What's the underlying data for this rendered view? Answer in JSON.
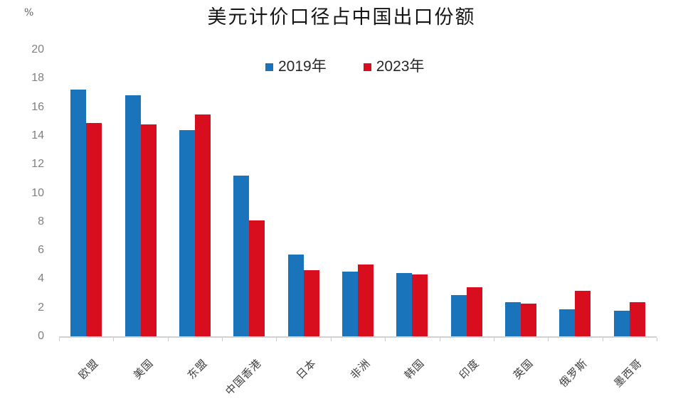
{
  "chart_data": {
    "type": "bar",
    "title": "美元计价口径占中国出口份额",
    "unit_label": "%",
    "categories": [
      "欧盟",
      "美国",
      "东盟",
      "中国香港",
      "日本",
      "非洲",
      "韩国",
      "印度",
      "英国",
      "俄罗斯",
      "墨西哥"
    ],
    "series": [
      {
        "name": "2019年",
        "color": "#1a74bc",
        "values": [
          17.2,
          16.8,
          14.4,
          11.2,
          5.7,
          4.5,
          4.4,
          2.9,
          2.4,
          1.9,
          1.8
        ]
      },
      {
        "name": "2023年",
        "color": "#d80e1e",
        "values": [
          14.9,
          14.8,
          15.5,
          8.1,
          4.6,
          5.0,
          4.3,
          3.4,
          2.3,
          3.2,
          2.4
        ]
      }
    ],
    "ylabel": "",
    "xlabel": "",
    "ylim": [
      0,
      20
    ],
    "yticks": [
      0,
      2,
      4,
      6,
      8,
      10,
      12,
      14,
      16,
      18,
      20
    ],
    "grid": false,
    "legend_position": "top-center",
    "colors": {
      "axis_line": "#d2d2d2",
      "ytick_text": "#7f7f7f",
      "xtick_text": "#3f3f3f",
      "title_text": "#151515"
    }
  }
}
